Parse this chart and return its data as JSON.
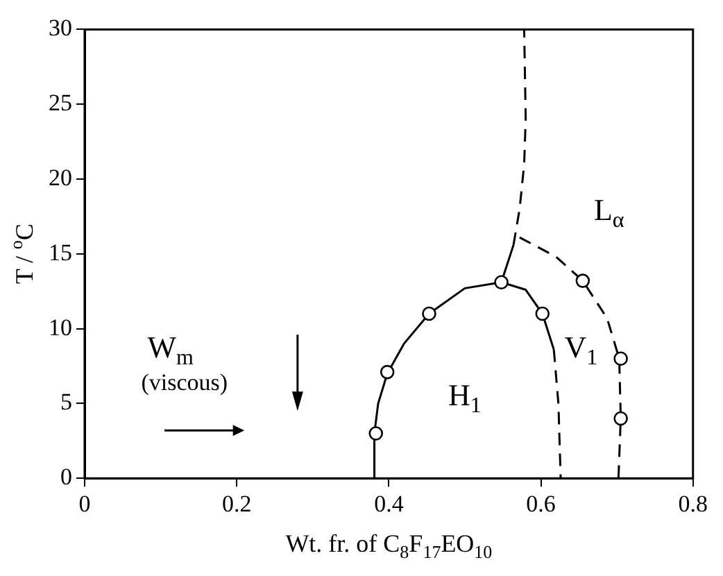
{
  "chart_data": {
    "type": "line",
    "xlabel": "Wt. fr. of C$_{8}$F$_{17}$EO$_{10}$",
    "ylabel": "T / $^{o}$C",
    "xlim": [
      0,
      0.8
    ],
    "xticks": [
      0,
      0.2,
      0.4,
      0.6,
      0.8
    ],
    "ylim": [
      0,
      30
    ],
    "yticks": [
      0,
      5,
      10,
      15,
      20,
      25,
      30
    ],
    "grid": false,
    "legend": false,
    "series": [
      {
        "type": "line",
        "line_style": "solid",
        "marker": "none",
        "color": "#000000",
        "x": [
          0.38,
          0.381,
          0.386,
          0.398,
          0.42,
          0.453,
          0.5,
          0.548,
          0.58,
          0.602,
          0.617
        ],
        "values": [
          0,
          3,
          5,
          7,
          9,
          11,
          12.7,
          13.1,
          12.6,
          11,
          8.6
        ]
      },
      {
        "type": "line",
        "line_style": "dashed",
        "marker": "none",
        "color": "#000000",
        "x": [
          0.617,
          0.623,
          0.626
        ],
        "values": [
          8.6,
          5,
          0
        ]
      },
      {
        "type": "line",
        "line_style": "solid",
        "marker": "none",
        "color": "#000000",
        "x": [
          0.548,
          0.564
        ],
        "values": [
          13.1,
          15.6
        ]
      },
      {
        "type": "line",
        "line_style": "dashed",
        "marker": "none",
        "color": "#000000",
        "x": [
          0.564,
          0.572,
          0.578,
          0.58,
          0.578
        ],
        "values": [
          15.6,
          18,
          21,
          24,
          30
        ]
      },
      {
        "type": "line",
        "line_style": "dashed",
        "marker": "none",
        "color": "#000000",
        "x": [
          0.572,
          0.62,
          0.655,
          0.687,
          0.703,
          0.705,
          0.702
        ],
        "values": [
          16.1,
          14.8,
          13.2,
          10.7,
          8,
          4,
          0
        ]
      },
      {
        "type": "scatter",
        "marker": "circle",
        "color": "#000000",
        "x": [
          0.383,
          0.398,
          0.453,
          0.548,
          0.602,
          0.655,
          0.705,
          0.705
        ],
        "values": [
          3,
          7.1,
          11,
          13.1,
          11,
          13.2,
          8,
          4
        ]
      }
    ],
    "annotations": [
      "W$_{m}$",
      "(viscous)",
      "H$_{1}$",
      "V$_{1}$",
      "L$_{α}$"
    ]
  }
}
